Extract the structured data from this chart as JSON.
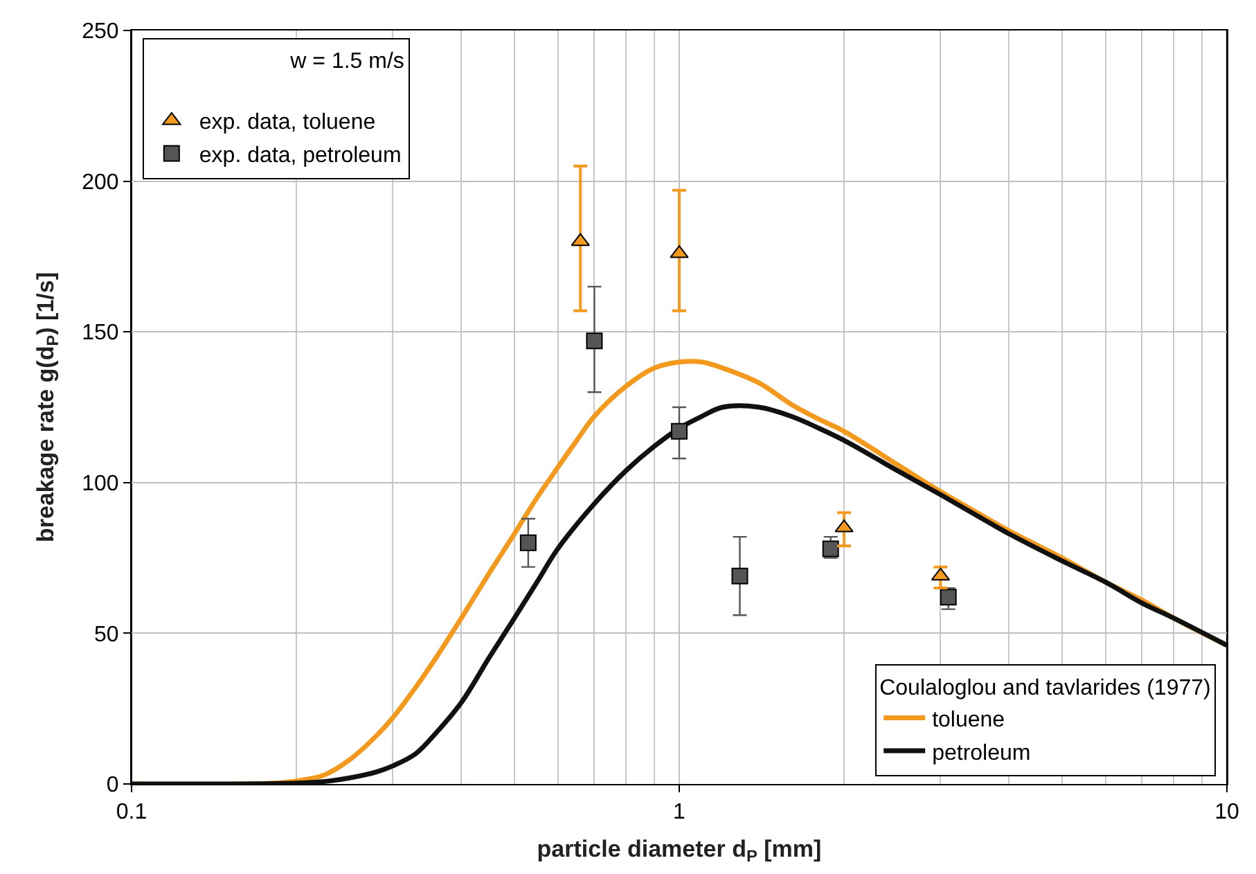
{
  "chart_data": {
    "type": "scatter",
    "xlabel": "particle diameter d$_{P}$ [mm]",
    "ylabel": "breakage rate g(d$_{P}$) [1/s]",
    "log": "x",
    "xlim": [
      0.1,
      10
    ],
    "xticks": [
      0.1,
      1,
      10
    ],
    "ylim": [
      0,
      250
    ],
    "yticks": [
      0,
      50,
      100,
      150,
      200,
      250
    ],
    "grid": true,
    "legend": [
      "top left",
      "bottom right"
    ],
    "legend_title": "Coulaloglou and tavlarides (1977)",
    "annotations": [
      "w = 1.5 m/s"
    ],
    "series": [
      {
        "name": "exp. data, toluene",
        "marker": "triangle",
        "color": "#f39a1e",
        "x": [
          0.66,
          1.0,
          2.0,
          3.0
        ],
        "values": [
          180,
          176,
          85,
          69
        ],
        "errors": [
          [
            157,
            205
          ],
          [
            157,
            197
          ],
          [
            79,
            90
          ],
          [
            65,
            72
          ]
        ]
      },
      {
        "name": "exp. data, petroleum",
        "marker": "square",
        "color": "#555555",
        "x": [
          0.53,
          0.7,
          1.0,
          1.29,
          1.89,
          3.1
        ],
        "values": [
          80,
          147,
          117,
          69,
          78,
          62
        ],
        "errors": [
          [
            72,
            88
          ],
          [
            130,
            165
          ],
          [
            108,
            125
          ],
          [
            56,
            82
          ],
          [
            75,
            82
          ],
          [
            58,
            65
          ]
        ]
      },
      {
        "name": "toluene",
        "type": "line",
        "marker": "none",
        "color": "#f39a1e",
        "x": [
          0.1,
          0.18,
          0.2,
          0.225,
          0.25,
          0.28,
          0.3,
          0.33,
          0.36,
          0.4,
          0.45,
          0.5,
          0.55,
          0.6,
          0.65,
          0.7,
          0.8,
          0.9,
          1.0,
          1.1,
          1.2,
          1.4,
          1.6,
          1.8,
          2,
          2.5,
          3,
          3.5,
          4,
          5,
          6,
          7,
          8,
          10
        ],
        "values": [
          0,
          0.2,
          1,
          3,
          8,
          16,
          22,
          32,
          42,
          55,
          70,
          83,
          95,
          105,
          114,
          122,
          132,
          138,
          140,
          140,
          138,
          133,
          126,
          121,
          117,
          106,
          97,
          90,
          84,
          75,
          67,
          61,
          55,
          46
        ]
      },
      {
        "name": "petroleum",
        "type": "line",
        "marker": "none",
        "color": "#111111",
        "x": [
          0.1,
          0.2,
          0.23,
          0.25,
          0.28,
          0.3,
          0.33,
          0.36,
          0.4,
          0.45,
          0.5,
          0.55,
          0.6,
          0.7,
          0.8,
          0.9,
          1.0,
          1.1,
          1.2,
          1.4,
          1.6,
          1.8,
          2,
          2.5,
          3,
          3.5,
          4,
          5,
          6,
          7,
          8,
          10
        ],
        "values": [
          0,
          0.3,
          1,
          2,
          4,
          6,
          10,
          17,
          27,
          42,
          55,
          67,
          78,
          93,
          104,
          112,
          118,
          122,
          125,
          125,
          122,
          118,
          114,
          104,
          96,
          89,
          83,
          74,
          67,
          60,
          55,
          46
        ]
      }
    ]
  }
}
